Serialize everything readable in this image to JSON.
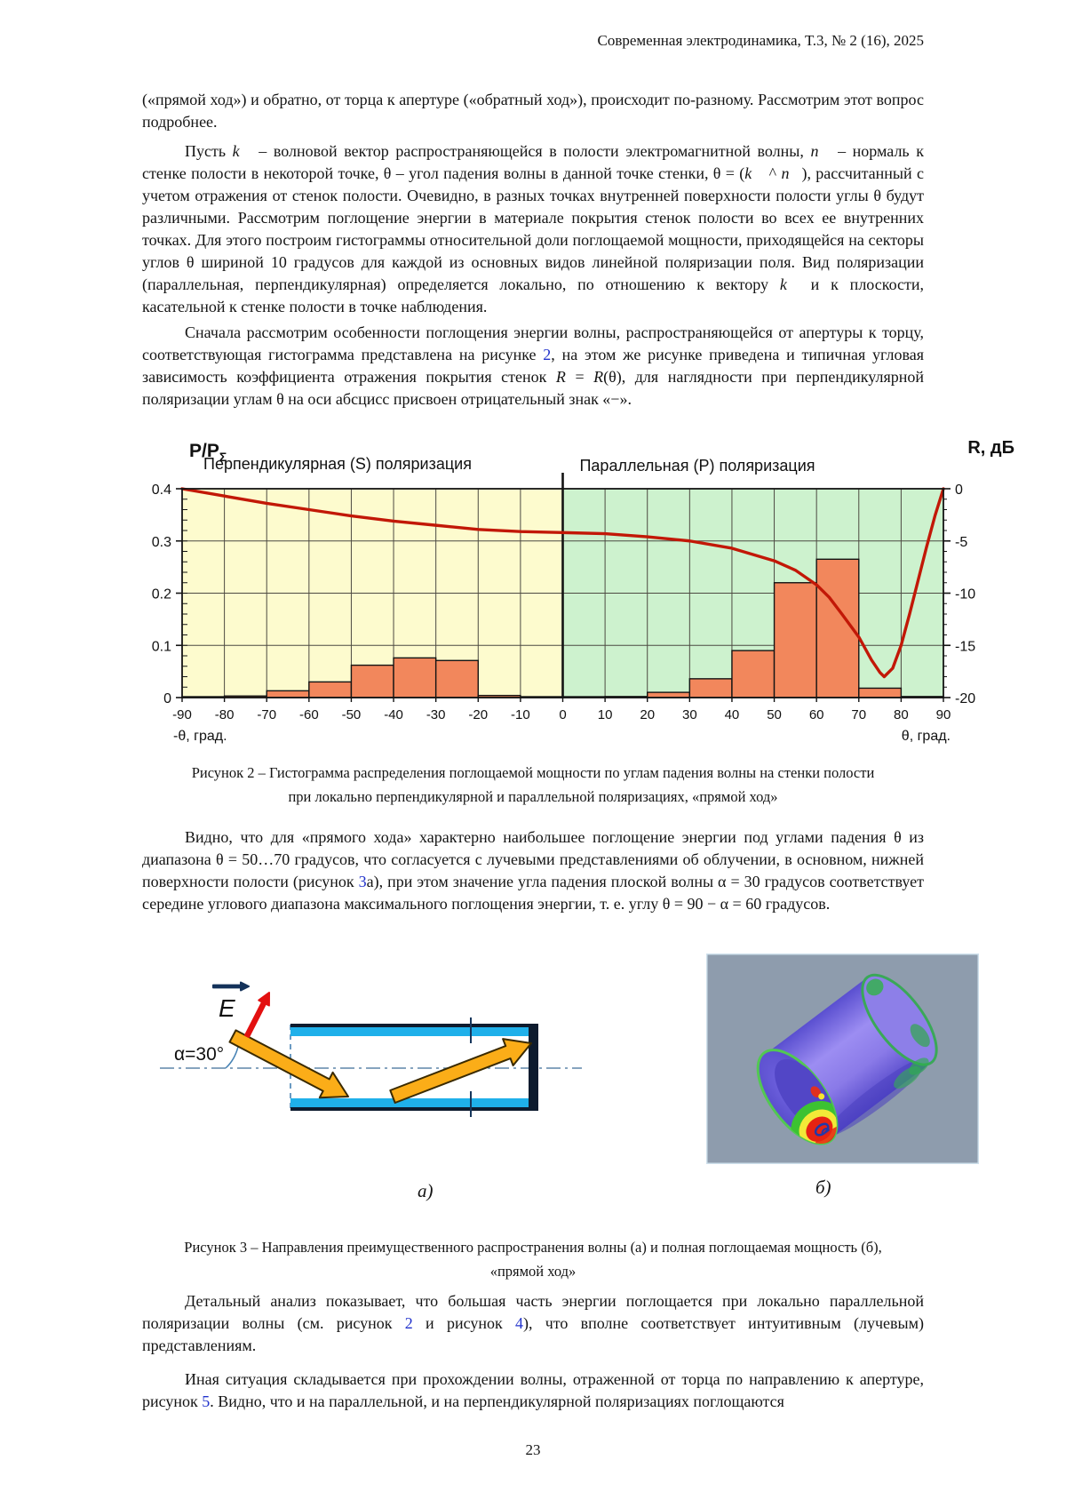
{
  "header": {
    "journal_line": "Современная электродинамика, Т.3, № 2 (16), 2025"
  },
  "page_number": "23",
  "paragraphs": {
    "p1": [
      "(«прямой ход») и обратно, от торца к апертуре («обратный ход»), происходит по-разному. Рассмотрим этот вопрос подробнее."
    ],
    "p2": [
      "Пусть ",
      {
        "t": "k⃗",
        "c": "mi"
      },
      " – волновой вектор распространяющейся в полости электромагнитной волны, ",
      {
        "t": "n⃗",
        "c": "mi"
      },
      " – нормаль к стенке полости в некоторой точке, θ – угол падения волны в данной точке стенки, θ = (",
      {
        "t": "k⃗",
        "c": "mi"
      },
      " ^ ",
      {
        "t": "n⃗",
        "c": "mi"
      },
      "), рассчитанный с учетом отражения от стенок полости. Очевидно, в разных точках внутренней поверхности полости углы θ будут различными. Рассмотрим поглощение энергии в материале покрытия стенок полости во всех ее внутренних точках. Для этого построим гистограммы относительной доли поглощаемой мощности, приходящейся на секторы углов θ шириной 10 градусов для каждой из основных видов линейной поляризации поля. Вид поляризации (параллельная, перпендикулярная) определяется локально, по отношению к вектору ",
      {
        "t": "k⃗",
        "c": "mi"
      },
      " и к плоскости, касательной к стенке полости в точке наблюдения."
    ],
    "p3": [
      "Сначала рассмотрим особенности поглощения энергии волны, распространяющейся от апертуры к торцу, соответствующая гистограмма представлена на рисунке ",
      {
        "t": "2",
        "c": "link"
      },
      ", на этом же рисунке приведена и типичная угловая зависимость коэффициента отражения покрытия стенок ",
      {
        "t": "R",
        "c": "mi"
      },
      " = ",
      {
        "t": "R",
        "c": "mi"
      },
      "(θ), для наглядности при перпендикулярной поляризации углам θ на оси абсцисс присвоен отрицательный знак «−»."
    ],
    "p4": [
      "Видно, что для «прямого хода» характерно наибольшее поглощение энергии под углами падения θ из диапазона θ = 50…70 градусов, что согласуется с лучевыми представлениями об облучении, в основном, нижней поверхности полости (рисунок ",
      {
        "t": "3",
        "c": "link"
      },
      "а), при этом значение угла падения плоской волны α = 30 градусов соответствует середине углового диапазона максимального поглощения энергии, т. е. углу θ = 90 − α = 60 градусов."
    ],
    "p5": [
      "Детальный анализ показывает, что большая часть энергии поглощается при локально параллельной поляризации волны (см. рисунок ",
      {
        "t": "2",
        "c": "link"
      },
      " и рисунок ",
      {
        "t": "4",
        "c": "link"
      },
      "), что вполне соответствует интуитивным (лучевым) представлениям."
    ],
    "p6": [
      "Иная ситуация складывается при прохождении волны, отраженной от торца по направлению к апертуре, рисунок ",
      {
        "t": "5",
        "c": "link"
      },
      ". Видно, что и на параллельной, и на перпендикулярной поляризациях поглощаются"
    ]
  },
  "figure2": {
    "caption_lines": [
      "Рисунок 2 – Гистограмма распределения поглощаемой мощности по углам падения волны на стенки полости",
      "при локально перпендикулярной и параллельной поляризациях, «прямой ход»"
    ]
  },
  "figure3": {
    "caption_lines": [
      "Рисунок 3 – Направления преимущественного распространения волны (а) и полная поглощаемая мощность (б),",
      "«прямой ход»"
    ],
    "label_a": "а)",
    "label_b": "б)",
    "alpha_label": "α=30°",
    "e_label": "E"
  },
  "chart_data": {
    "type": "bar",
    "description": "Histogram of relative absorbed power vs incidence angle with reflection coefficient curve",
    "regions": [
      {
        "label": "Перпендикулярная (S) поляризация",
        "theta_from": -90,
        "theta_to": 0,
        "bg": "#FDFBCE"
      },
      {
        "label": "Параллельная (P) поляризация",
        "theta_from": 0,
        "theta_to": 90,
        "bg": "#CDF2CE"
      }
    ],
    "left_axis": {
      "label": "P/P",
      "label_sub": "Σ",
      "min": 0,
      "max": 0.4,
      "ticks": [
        0.4,
        0.3,
        0.2,
        0.1,
        0
      ],
      "minor_step": 0.02
    },
    "right_axis": {
      "label": "R, дБ",
      "min": -20,
      "max": 0,
      "ticks": [
        0,
        -5,
        -10,
        -15,
        -20
      ],
      "minor_step": 1
    },
    "x_axis": {
      "min": -90,
      "max": 90,
      "tick_step": 10,
      "label_left": "-θ, град.",
      "label_right": "θ, град."
    },
    "bars": {
      "color": "#F2875C",
      "bin_width": 10,
      "values": [
        {
          "from": -90,
          "p": 0.001
        },
        {
          "from": -80,
          "p": 0.003
        },
        {
          "from": -70,
          "p": 0.013
        },
        {
          "from": -60,
          "p": 0.03
        },
        {
          "from": -50,
          "p": 0.062
        },
        {
          "from": -40,
          "p": 0.076
        },
        {
          "from": -30,
          "p": 0.071
        },
        {
          "from": -20,
          "p": 0.004
        },
        {
          "from": -10,
          "p": 0.001
        },
        {
          "from": 0,
          "p": 0.001
        },
        {
          "from": 10,
          "p": 0.002
        },
        {
          "from": 20,
          "p": 0.01
        },
        {
          "from": 30,
          "p": 0.036
        },
        {
          "from": 40,
          "p": 0.09
        },
        {
          "from": 50,
          "p": 0.22
        },
        {
          "from": 60,
          "p": 0.265
        },
        {
          "from": 70,
          "p": 0.018
        },
        {
          "from": 80,
          "p": 0.002
        }
      ]
    },
    "reflection_curve": {
      "name": "R(θ)",
      "units": "дБ",
      "color": "#C21807",
      "points": [
        [
          -90,
          0
        ],
        [
          -80,
          -0.7
        ],
        [
          -70,
          -1.4
        ],
        [
          -60,
          -2.0
        ],
        [
          -50,
          -2.6
        ],
        [
          -40,
          -3.1
        ],
        [
          -30,
          -3.5
        ],
        [
          -20,
          -3.9
        ],
        [
          -10,
          -4.1
        ],
        [
          0,
          -4.2
        ],
        [
          10,
          -4.3
        ],
        [
          20,
          -4.6
        ],
        [
          30,
          -5.0
        ],
        [
          40,
          -5.7
        ],
        [
          50,
          -6.9
        ],
        [
          55,
          -7.8
        ],
        [
          60,
          -9.2
        ],
        [
          63,
          -10.4
        ],
        [
          66,
          -12.0
        ],
        [
          70,
          -14.2
        ],
        [
          73,
          -16.4
        ],
        [
          75,
          -17.6
        ],
        [
          76,
          -18.0
        ],
        [
          78,
          -17.2
        ],
        [
          80,
          -15.0
        ],
        [
          82,
          -12.0
        ],
        [
          84,
          -8.8
        ],
        [
          86,
          -5.6
        ],
        [
          88,
          -2.6
        ],
        [
          90,
          0
        ]
      ]
    }
  }
}
